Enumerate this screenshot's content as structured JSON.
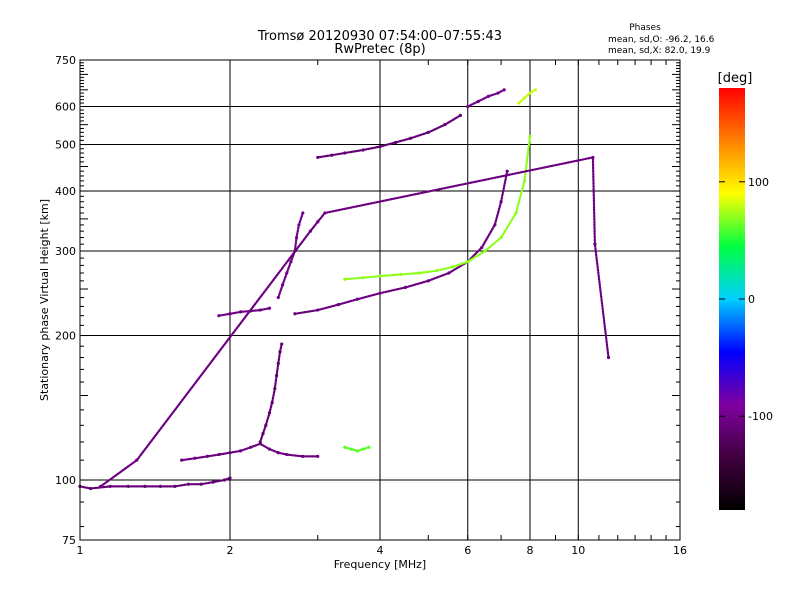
{
  "chart_data": {
    "type": "scatter",
    "title": "Tromsø 20120930 07:54:00–07:55:43",
    "subtitle": "RwPretec (8p)",
    "xlabel": "Frequency [MHz]",
    "ylabel": "Stationary phase Virtual Height [km]",
    "x_scale": "log",
    "y_scale": "log",
    "xlim": [
      1,
      16
    ],
    "ylim": [
      75,
      750
    ],
    "x_ticks": [
      1,
      2,
      4,
      6,
      8,
      10,
      16
    ],
    "y_ticks": [
      75,
      100,
      200,
      300,
      400,
      500,
      600,
      750
    ],
    "x_gridlines": [
      2,
      4,
      6,
      8,
      10
    ],
    "y_gridlines": [
      100,
      200,
      300,
      400,
      500,
      600
    ],
    "grid": true,
    "colorbar": {
      "label": "[deg]",
      "min": -180,
      "max": 180,
      "ticks": [
        100,
        0,
        -100
      ],
      "colors": [
        "#000000",
        "#400040",
        "#8000a0",
        "#0000ff",
        "#00d0ff",
        "#00ff40",
        "#ffff00",
        "#ff8000",
        "#ff0000"
      ]
    },
    "stats": {
      "header": "Phases",
      "line1": "mean, sd,O: -96.2, 16.6",
      "line2": "mean, sd,X:  82.0, 19.9"
    },
    "traces": [
      {
        "mode": "O",
        "layer": "E",
        "phase": -110,
        "x": [
          1.0,
          1.05,
          1.15,
          1.25,
          1.35,
          1.45,
          1.55,
          1.65,
          1.75,
          1.85,
          1.95,
          2.0
        ],
        "y": [
          97,
          96,
          97,
          97,
          97,
          97,
          97,
          98,
          98,
          99,
          100,
          101
        ]
      },
      {
        "mode": "O",
        "layer": "Es",
        "phase": -105,
        "x": [
          1.6,
          1.7,
          1.8,
          1.9,
          2.0,
          2.1,
          2.2,
          2.3,
          2.4,
          2.5,
          2.6,
          2.8,
          3.0
        ],
        "y": [
          110,
          111,
          112,
          113,
          114,
          115,
          117,
          119,
          116,
          114,
          113,
          112,
          112
        ]
      },
      {
        "mode": "O",
        "layer": "E-cusp",
        "phase": -110,
        "x": [
          2.3,
          2.33,
          2.36,
          2.4,
          2.43,
          2.46,
          2.48,
          2.5,
          2.52,
          2.54
        ],
        "y": [
          120,
          125,
          130,
          138,
          145,
          155,
          165,
          175,
          185,
          192
        ]
      },
      {
        "mode": "X",
        "layer": "Es",
        "phase": 60,
        "x": [
          3.4,
          3.5,
          3.6,
          3.7,
          3.8
        ],
        "y": [
          117,
          116,
          115,
          116,
          117
        ]
      },
      {
        "mode": "O",
        "layer": "F1",
        "phase": -105,
        "x": [
          1.9,
          2.0,
          2.1,
          2.2,
          2.3,
          2.4
        ],
        "y": [
          220,
          222,
          224,
          225,
          226,
          228
        ]
      },
      {
        "mode": "O",
        "layer": "F1-cusp",
        "phase": -100,
        "x": [
          2.5,
          2.55,
          2.6,
          2.65,
          2.7,
          2.72,
          2.75,
          2.8
        ],
        "y": [
          240,
          255,
          270,
          285,
          300,
          320,
          340,
          360
        ]
      },
      {
        "mode": "O",
        "layer": "F2",
        "phase": -105,
        "x": [
          2.7,
          3.0,
          3.3,
          3.6,
          4.0,
          4.5,
          5.0,
          5.5,
          6.0,
          6.4,
          6.8,
          7.0,
          7.2
        ],
        "y": [
          222,
          226,
          232,
          238,
          245,
          252,
          260,
          270,
          285,
          305,
          340,
          380,
          440
        ]
      },
      {
        "mode": "X",
        "layer": "F2",
        "phase": 70,
        "x": [
          3.4,
          3.7,
          4.0,
          4.4,
          4.8,
          5.2,
          5.6,
          6.0,
          6.5,
          7.0,
          7.5,
          7.8,
          8.0
        ],
        "y": [
          262,
          264,
          266,
          268,
          270,
          273,
          278,
          285,
          300,
          320,
          360,
          420,
          520
        ]
      },
      {
        "mode": "O",
        "layer": "F2-upper",
        "phase": -110,
        "x": [
          3.0,
          3.2,
          3.4,
          3.7,
          4.0,
          4.3,
          4.6,
          5.0,
          5.4,
          5.8
        ],
        "y": [
          470,
          475,
          480,
          487,
          495,
          505,
          515,
          530,
          550,
          575
        ]
      },
      {
        "mode": "O",
        "layer": "F2-upper",
        "phase": -100,
        "x": [
          6.0,
          6.3,
          6.6,
          6.9,
          7.1
        ],
        "y": [
          600,
          615,
          630,
          640,
          650
        ]
      },
      {
        "mode": "X",
        "layer": "F2-upper",
        "phase": 80,
        "x": [
          7.6,
          7.8,
          8.0,
          8.2
        ],
        "y": [
          610,
          625,
          640,
          650
        ]
      },
      {
        "mode": "O",
        "layer": "scatter",
        "phase": -105,
        "x": [
          1.1,
          1.3,
          2.9,
          3.0,
          3.1,
          10.7,
          10.8,
          11.5
        ],
        "y": [
          97,
          110,
          330,
          345,
          360,
          470,
          310,
          180
        ]
      }
    ]
  }
}
